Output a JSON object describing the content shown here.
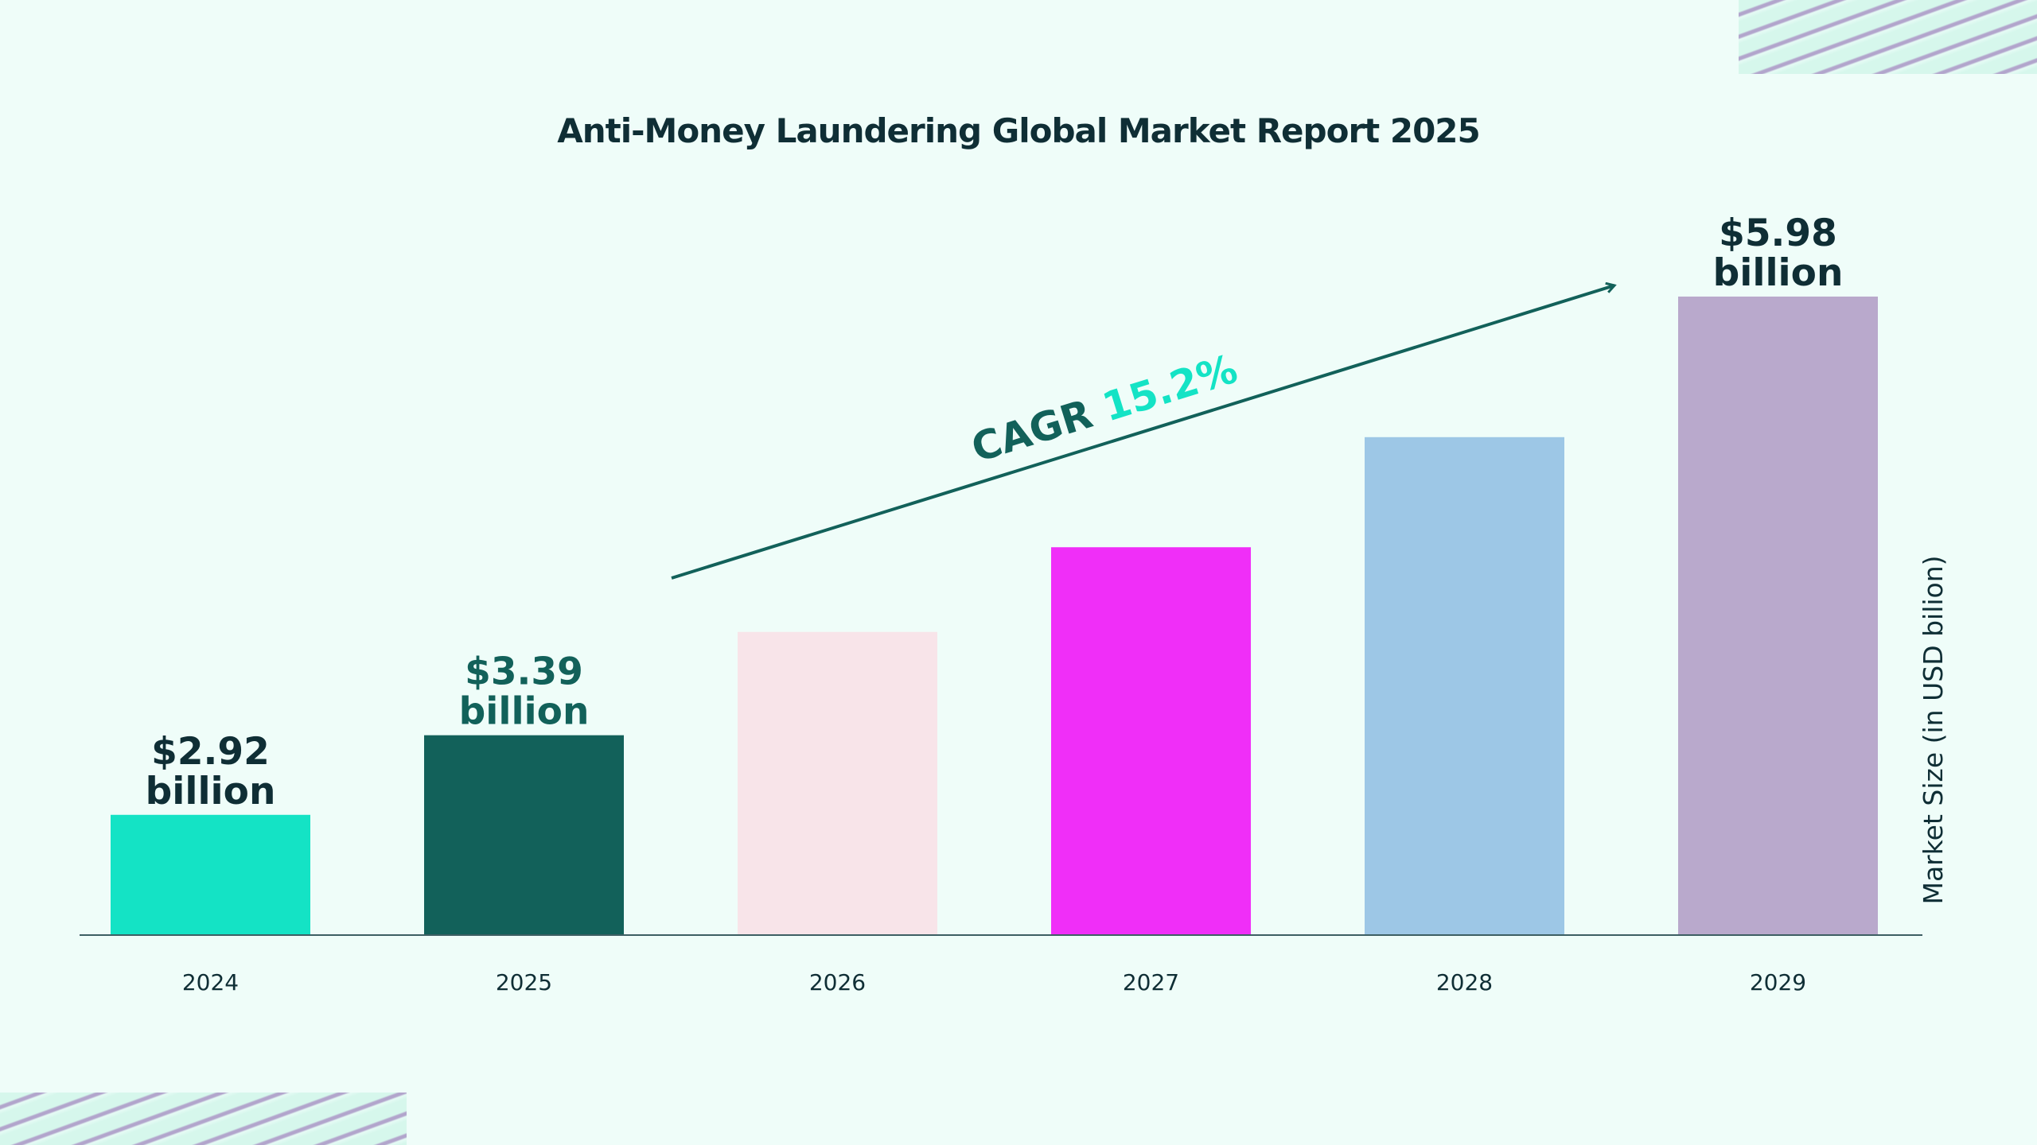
{
  "chart_data": {
    "type": "bar",
    "title": "Anti-Money Laundering Global Market Report 2025",
    "categories": [
      "2024",
      "2025",
      "2026",
      "2027",
      "2028",
      "2029"
    ],
    "values": [
      2.92,
      3.39,
      4.0,
      4.5,
      5.15,
      5.98
    ],
    "colors": [
      "#14e3c5",
      "#12615a",
      "#f8e4e9",
      "#f02ef8",
      "#9dc7e6",
      "#b9a9cc"
    ],
    "data_labels": [
      {
        "index": 0,
        "line1": "$2.92",
        "line2": "billion",
        "color": "#0f2e35"
      },
      {
        "index": 1,
        "line1": "$3.39",
        "line2": "billion",
        "color": "#12615a"
      },
      {
        "index": 5,
        "line1": "$5.98",
        "line2": "billion",
        "color": "#0f2e35"
      }
    ],
    "xlabel": "",
    "ylabel": "Market Size (in USD bilion)",
    "ylim": [
      2.21,
      6.2
    ],
    "grid": false,
    "annotation": {
      "prefix": "CAGR",
      "value": "15.2%",
      "prefix_color": "#12615a",
      "value_color": "#14e3c5"
    }
  }
}
